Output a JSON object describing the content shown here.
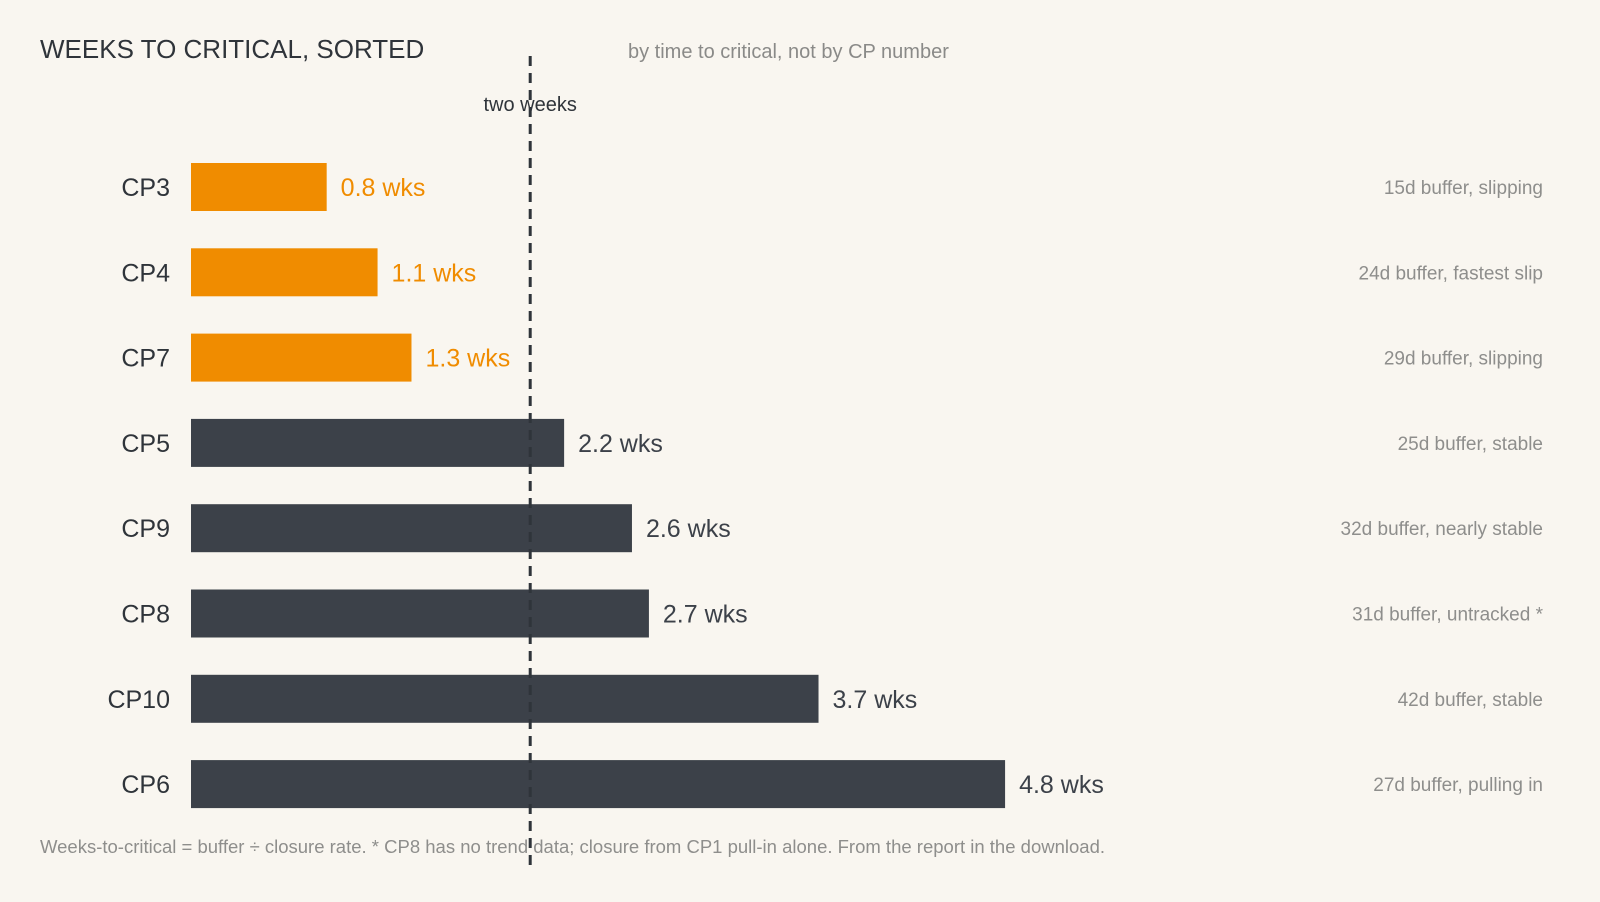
{
  "chart_data": {
    "type": "bar",
    "orientation": "horizontal",
    "title": "WEEKS TO CRITICAL, SORTED",
    "subtitle": "by time to critical, not by CP number",
    "categories": [
      "CP3",
      "CP4",
      "CP7",
      "CP5",
      "CP9",
      "CP8",
      "CP10",
      "CP6"
    ],
    "values": [
      0.8,
      1.1,
      1.3,
      2.2,
      2.6,
      2.7,
      3.7,
      4.8
    ],
    "value_labels": [
      "0.8 wks",
      "1.1 wks",
      "1.3 wks",
      "2.2 wks",
      "2.6 wks",
      "2.7 wks",
      "3.7 wks",
      "4.8 wks"
    ],
    "notes": [
      "15d buffer, slipping",
      "24d buffer, fastest slip",
      "29d buffer, slipping",
      "25d buffer, stable",
      "32d buffer, nearly stable",
      "31d buffer, untracked *",
      "42d buffer, stable",
      "27d buffer, pulling in"
    ],
    "highlight_below": 2,
    "reference_line": {
      "value": 2,
      "label": "two weeks"
    },
    "xlim": [
      0,
      6
    ],
    "grid": false,
    "colors": {
      "highlight": "#f08c00",
      "default": "#3c4149",
      "reference": "#2f343a"
    },
    "footnote": "Weeks-to-critical = buffer ÷ closure rate. * CP8 has no trend data; closure from CP1 pull-in alone. From the report in the download."
  }
}
